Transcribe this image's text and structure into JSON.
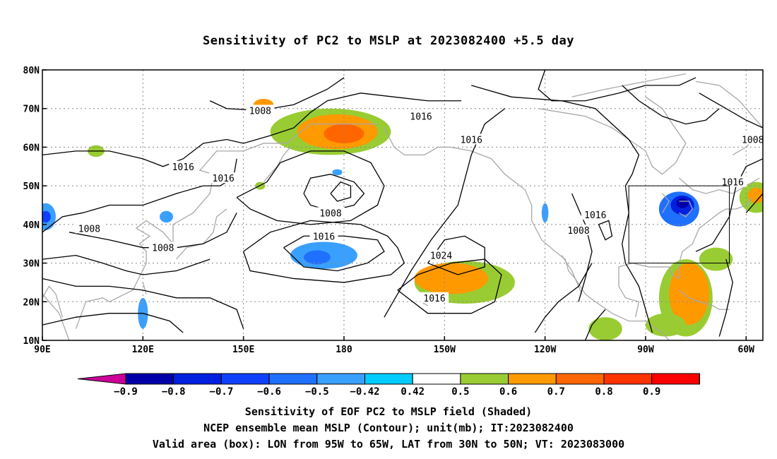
{
  "title": "Sensitivity of PC2 to MSLP at 2023082400 +5.5 day",
  "map": {
    "lon_min": 90,
    "lon_max": 305,
    "lat_min": 10,
    "lat_max": 80,
    "lon_ticks": [
      {
        "lon": 90,
        "label": "90E"
      },
      {
        "lon": 120,
        "label": "120E"
      },
      {
        "lon": 150,
        "label": "150E"
      },
      {
        "lon": 180,
        "label": "180"
      },
      {
        "lon": 210,
        "label": "150W"
      },
      {
        "lon": 240,
        "label": "120W"
      },
      {
        "lon": 270,
        "label": "90W"
      },
      {
        "lon": 300,
        "label": "60W"
      }
    ],
    "lat_ticks": [
      {
        "lat": 80,
        "label": "80N"
      },
      {
        "lat": 70,
        "label": "70N"
      },
      {
        "lat": 60,
        "label": "60N"
      },
      {
        "lat": 50,
        "label": "50N"
      },
      {
        "lat": 40,
        "label": "40N"
      },
      {
        "lat": 30,
        "label": "30N"
      },
      {
        "lat": 20,
        "label": "20N"
      },
      {
        "lat": 10,
        "label": "10N"
      }
    ],
    "valid_box": {
      "lon_w": 265,
      "lon_e": 295,
      "lat_s": 30,
      "lat_n": 50
    },
    "contour_labels": [
      {
        "text": "1008",
        "lon": 155,
        "lat": 69.5
      },
      {
        "text": "1016",
        "lon": 132,
        "lat": 55
      },
      {
        "text": "1016",
        "lon": 144,
        "lat": 52
      },
      {
        "text": "1008",
        "lon": 104,
        "lat": 39
      },
      {
        "text": "1008",
        "lon": 126,
        "lat": 34
      },
      {
        "text": "1008",
        "lon": 176,
        "lat": 43
      },
      {
        "text": "1016",
        "lon": 174,
        "lat": 37
      },
      {
        "text": "1016",
        "lon": 203,
        "lat": 68
      },
      {
        "text": "1016",
        "lon": 218,
        "lat": 62
      },
      {
        "text": "1024",
        "lon": 209,
        "lat": 32
      },
      {
        "text": "1016",
        "lon": 207,
        "lat": 21
      },
      {
        "text": "1016",
        "lon": 255,
        "lat": 42.5
      },
      {
        "text": "1008",
        "lon": 250,
        "lat": 38.5
      },
      {
        "text": "1008",
        "lon": 302,
        "lat": 62
      },
      {
        "text": "1016",
        "lon": 296,
        "lat": 51
      }
    ],
    "sensitivity_blobs": [
      {
        "lon": 176,
        "lat": 64,
        "rx": 18,
        "ry": 6,
        "value": 0.55
      },
      {
        "lon": 178,
        "lat": 64,
        "rx": 12,
        "ry": 4.5,
        "value": 0.65
      },
      {
        "lon": 180,
        "lat": 63.5,
        "rx": 6,
        "ry": 2.5,
        "value": 0.75
      },
      {
        "lon": 156,
        "lat": 70,
        "rx": 6,
        "ry": 3,
        "value": 0.45
      },
      {
        "lon": 156,
        "lat": 71,
        "rx": 3,
        "ry": 1.5,
        "value": 0.65
      },
      {
        "lon": 216,
        "lat": 25,
        "rx": 15,
        "ry": 5.5,
        "value": 0.5
      },
      {
        "lon": 212,
        "lat": 26,
        "rx": 11,
        "ry": 4,
        "value": 0.6
      },
      {
        "lon": 216,
        "lat": 26.5,
        "rx": 5,
        "ry": 2,
        "value": 0.65
      },
      {
        "lon": 174,
        "lat": 32,
        "rx": 10,
        "ry": 3.5,
        "value": -0.45
      },
      {
        "lon": 172,
        "lat": 31.5,
        "rx": 4,
        "ry": 1.8,
        "value": -0.55
      },
      {
        "lon": 280,
        "lat": 44,
        "rx": 6,
        "ry": 4.5,
        "value": -0.55
      },
      {
        "lon": 281,
        "lat": 45,
        "rx": 3.5,
        "ry": 2.5,
        "value": -0.75
      },
      {
        "lon": 281,
        "lat": 45.5,
        "rx": 1.8,
        "ry": 1.3,
        "value": -0.85
      },
      {
        "lon": 282,
        "lat": 21,
        "rx": 8,
        "ry": 10,
        "value": 0.5
      },
      {
        "lon": 283,
        "lat": 22,
        "rx": 6,
        "ry": 8,
        "value": 0.6
      },
      {
        "lon": 282,
        "lat": 20,
        "rx": 3,
        "ry": 4,
        "value": 0.65
      },
      {
        "lon": 291,
        "lat": 31,
        "rx": 5,
        "ry": 3,
        "value": 0.5
      },
      {
        "lon": 303,
        "lat": 47,
        "rx": 5,
        "ry": 4,
        "value": 0.5
      },
      {
        "lon": 303,
        "lat": 47.5,
        "rx": 2.5,
        "ry": 2,
        "value": 0.65
      },
      {
        "lon": 258,
        "lat": 13,
        "rx": 5,
        "ry": 3,
        "value": 0.55
      },
      {
        "lon": 276,
        "lat": 14,
        "rx": 6,
        "ry": 3,
        "value": 0.55
      },
      {
        "lon": 262,
        "lat": 61,
        "rx": 4,
        "ry": 3.5,
        "value": 0.45
      },
      {
        "lon": 106,
        "lat": 59,
        "rx": 2.5,
        "ry": 1.5,
        "value": 0.5
      },
      {
        "lon": 91,
        "lat": 42,
        "rx": 3,
        "ry": 3.5,
        "value": -0.5
      },
      {
        "lon": 91,
        "lat": 42,
        "rx": 1.5,
        "ry": 1.5,
        "value": -0.7
      },
      {
        "lon": 120,
        "lat": 17,
        "rx": 1.5,
        "ry": 4,
        "value": -0.5
      },
      {
        "lon": 127,
        "lat": 42,
        "rx": 2,
        "ry": 1.5,
        "value": -0.45
      },
      {
        "lon": 178,
        "lat": 53.5,
        "rx": 1.5,
        "ry": 0.8,
        "value": -0.45
      },
      {
        "lon": 240,
        "lat": 43,
        "rx": 1,
        "ry": 2.5,
        "value": -0.5
      },
      {
        "lon": 155,
        "lat": 50,
        "rx": 1.5,
        "ry": 1,
        "value": 0.5
      }
    ]
  },
  "colorbar": {
    "labels": [
      "-0.9",
      "-0.8",
      "-0.7",
      "-0.6",
      "-0.5",
      "-0.42",
      "0.42",
      "0.5",
      "0.6",
      "0.7",
      "0.8",
      "0.9"
    ],
    "colors": [
      "#0000a8",
      "#0020e0",
      "#1040ff",
      "#2070ff",
      "#3aa0ff",
      "#00ccff",
      "#ffffff",
      "#99cc33",
      "#ff9900",
      "#ff6600",
      "#ff3300",
      "#ff0000"
    ],
    "low_color": "#cc0099",
    "high_color": "#ff99cc"
  },
  "captions": {
    "line1": "Sensitivity of EOF PC2 to MSLP field (Shaded)",
    "line2": "NCEP ensemble mean MSLP (Contour); unit(mb); IT:2023082400",
    "line3": "Valid area (box): LON from 95W to 65W, LAT from 30N to 50N; VT: 2023083000"
  }
}
